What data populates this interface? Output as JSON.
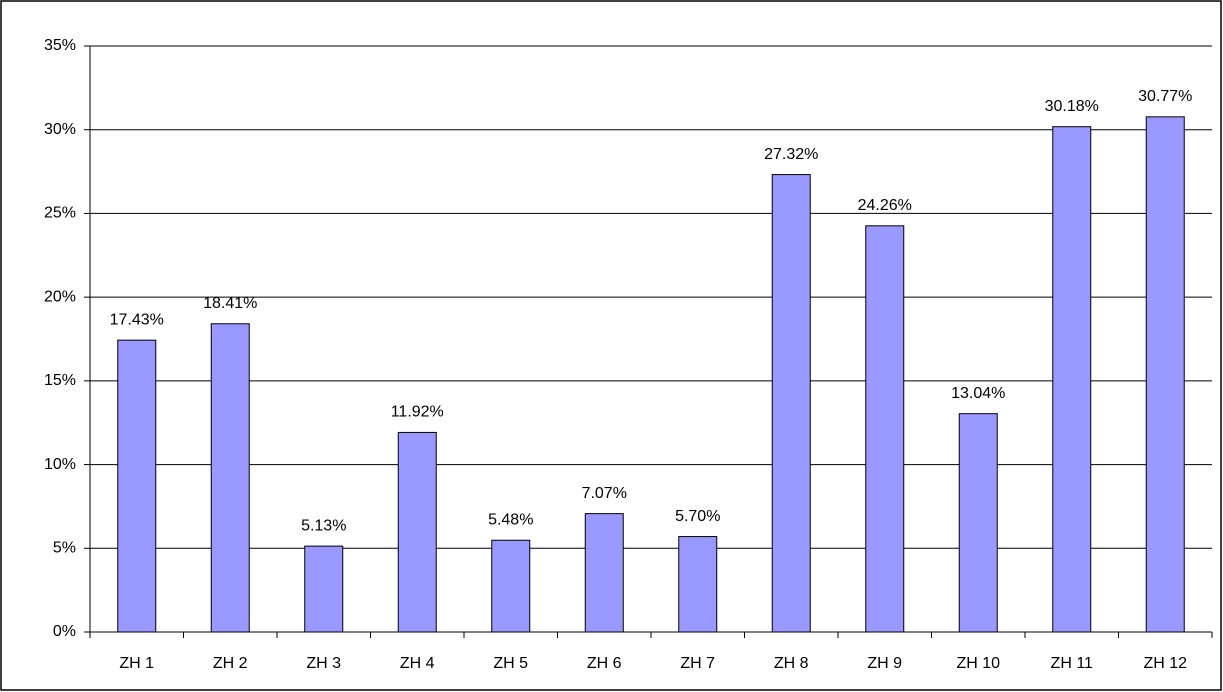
{
  "chart_data": {
    "type": "bar",
    "categories": [
      "ZH 1",
      "ZH 2",
      "ZH 3",
      "ZH 4",
      "ZH 5",
      "ZH 6",
      "ZH 7",
      "ZH 8",
      "ZH 9",
      "ZH 10",
      "ZH 11",
      "ZH 12"
    ],
    "values": [
      17.43,
      18.41,
      5.13,
      11.92,
      5.48,
      7.07,
      5.7,
      27.32,
      24.26,
      13.04,
      30.18,
      30.77
    ],
    "value_labels": [
      "17.43%",
      "18.41%",
      "5.13%",
      "11.92%",
      "5.48%",
      "7.07%",
      "5.70%",
      "27.32%",
      "24.26%",
      "13.04%",
      "30.18%",
      "30.77%"
    ],
    "color": "#9999ff",
    "ylim": [
      0,
      35
    ],
    "yticks": [
      {
        "value": 0,
        "label": "0%"
      },
      {
        "value": 5,
        "label": "5%"
      },
      {
        "value": 10,
        "label": "10%"
      },
      {
        "value": 15,
        "label": "15%"
      },
      {
        "value": 20,
        "label": "20%"
      },
      {
        "value": 25,
        "label": "25%"
      },
      {
        "value": 30,
        "label": "30%"
      },
      {
        "value": 35,
        "label": "35%"
      }
    ],
    "grid": true
  }
}
